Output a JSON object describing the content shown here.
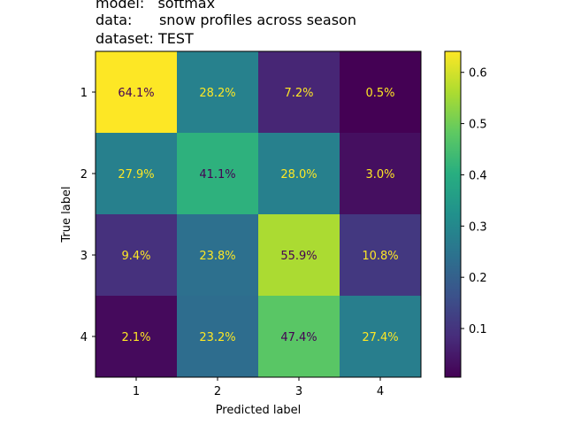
{
  "chart_data": {
    "type": "heatmap",
    "title_lines": [
      "model:   softmax",
      "data:      snow profiles across season",
      "dataset: TEST"
    ],
    "xlabel": "Predicted label",
    "ylabel": "True label",
    "x_categories": [
      "1",
      "2",
      "3",
      "4"
    ],
    "y_categories": [
      "1",
      "2",
      "3",
      "4"
    ],
    "values": [
      [
        0.641,
        0.282,
        0.072,
        0.005
      ],
      [
        0.279,
        0.411,
        0.28,
        0.03
      ],
      [
        0.094,
        0.238,
        0.559,
        0.108
      ],
      [
        0.021,
        0.232,
        0.474,
        0.274
      ]
    ],
    "cell_labels": [
      [
        "64.1%",
        "28.2%",
        "7.2%",
        "0.5%"
      ],
      [
        "27.9%",
        "41.1%",
        "28.0%",
        "3.0%"
      ],
      [
        "9.4%",
        "23.8%",
        "55.9%",
        "10.8%"
      ],
      [
        "2.1%",
        "23.2%",
        "47.4%",
        "27.4%"
      ]
    ],
    "colormap": "viridis",
    "color_range": [
      0.005,
      0.641
    ],
    "colorbar_ticks": [
      0.1,
      0.2,
      0.3,
      0.4,
      0.5,
      0.6
    ],
    "colorbar_tick_labels": [
      "0.1",
      "0.2",
      "0.3",
      "0.4",
      "0.5",
      "0.6"
    ],
    "text_colors": {
      "on_dark": "#fde725",
      "on_light": "#440154"
    },
    "grid": false
  }
}
